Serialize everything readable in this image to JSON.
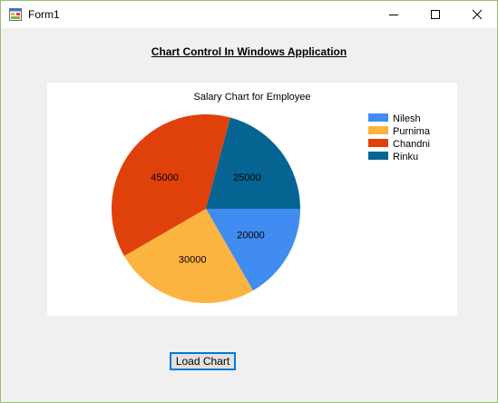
{
  "window": {
    "title": "Form1",
    "icon": "winforms-app-icon"
  },
  "heading": "Chart Control In Windows Application",
  "button": {
    "label": "Load Chart"
  },
  "chart_data": {
    "type": "pie",
    "title": "Salary Chart for Employee",
    "categories": [
      "Nilesh",
      "Purnima",
      "Chandni",
      "Rinku"
    ],
    "values": [
      20000,
      30000,
      45000,
      25000
    ],
    "colors": [
      "#418cf0",
      "#fcb441",
      "#e0400a",
      "#056492"
    ],
    "legend_position": "top-right",
    "data_labels": true
  }
}
